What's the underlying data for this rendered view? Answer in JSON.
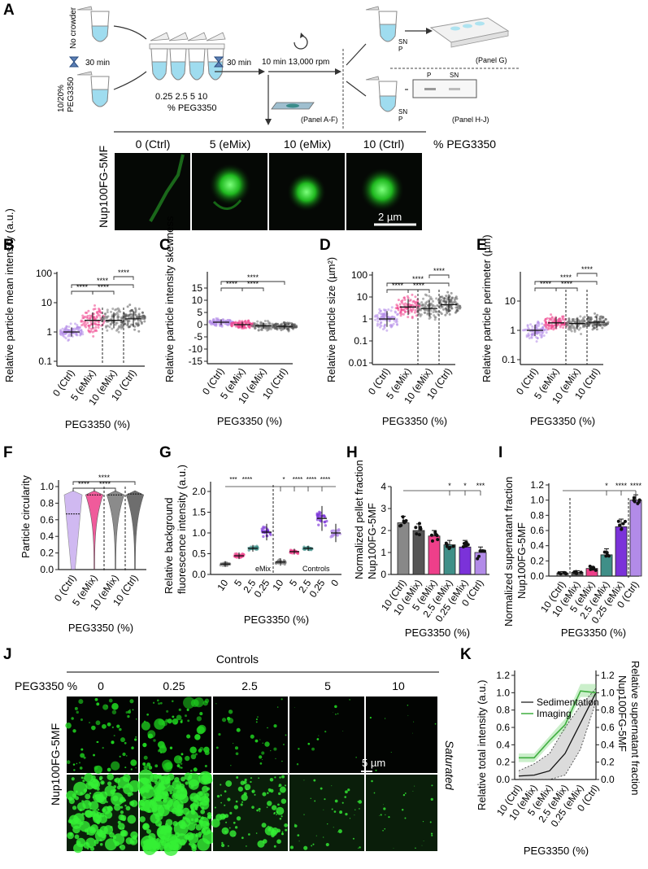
{
  "panels": {
    "A": "A",
    "B": "B",
    "C": "C",
    "D": "D",
    "E": "E",
    "F": "F",
    "G": "G",
    "H": "H",
    "I": "I",
    "J": "J",
    "K": "K"
  },
  "schematic": {
    "no_crowder": "No crowder",
    "peg_label_1": "10/20%",
    "peg_label_2": "PEG3350",
    "time_1": "30 min",
    "time_2": "30 min",
    "spin": "10 min 13,000 rpm",
    "conc_values": "0.25  2.5   5   10",
    "conc_unit": "% PEG3350",
    "sn": "SN",
    "p": "P",
    "panel_g_ref": "(Panel G)",
    "panel_hj_ref": "(Panel H-J)",
    "panel_af_ref": "(Panel A-F)",
    "gel_p": "P",
    "gel_sn": "SN"
  },
  "micrographs": {
    "headers": [
      "0 (Ctrl)",
      "5 (eMix)",
      "10 (eMix)",
      "10 (Ctrl)"
    ],
    "unit": "% PEG3350",
    "row_label": "Nup100FG-5MF",
    "scale": "2 µm"
  },
  "cats4": [
    "0 (Ctrl)",
    "5 (eMix)",
    "10 (eMix)",
    "10 (Ctrl)"
  ],
  "xlabel_peg": "PEG3350 (%)",
  "sig": "****",
  "B": {
    "ylabel": "Relative particle mean intensity (a.u.)",
    "ticks": [
      "100",
      "10",
      "1",
      "0.1"
    ]
  },
  "C": {
    "ylabel": "Relative particle intensity skewness",
    "ticks": [
      "15",
      "10",
      "5",
      "0",
      "-5",
      "-10",
      "-15"
    ]
  },
  "D": {
    "ylabel": "Relative particle size (µm²)",
    "ticks": [
      "100",
      "10",
      "1",
      "0.1",
      "0.01"
    ]
  },
  "E": {
    "ylabel": "Relative particle perimeter (µm)",
    "ticks": [
      "10",
      "1",
      "0.1"
    ]
  },
  "F": {
    "ylabel": "Particle circularity",
    "ticks": [
      "1.0",
      "0.8",
      "0.6",
      "0.4",
      "0.2",
      "0.0"
    ]
  },
  "G": {
    "ylabel_1": "Relative background",
    "ylabel_2": "fluorescence intensity (a.u.)",
    "ticks": [
      "2.0",
      "1.5",
      "1.0",
      "0.5",
      "0.0"
    ],
    "cats": [
      "10",
      "5",
      "2.5",
      "0.25",
      "10",
      "5",
      "2.5",
      "0.25",
      "0"
    ],
    "emix": "eMix",
    "controls": "Controls",
    "sig_labels": [
      "***",
      "****",
      "*",
      "****",
      "****",
      "****"
    ]
  },
  "H": {
    "ylabel_1": "Normalized pellet fraction",
    "ylabel_2": "Nup100FG-5MF",
    "ticks": [
      "4",
      "3",
      "2",
      "1",
      "0"
    ],
    "cats": [
      "10 (Ctrl)",
      "10 (eMix)",
      "5 (eMix)",
      "2.5 (eMix)",
      "0.25 (eMix)",
      "0 (Ctrl)"
    ],
    "sig_labels": [
      "*",
      "*",
      "***"
    ]
  },
  "I": {
    "ylabel_1": "Normalized supernatant fraction",
    "ylabel_2": "Nup100FG-5MF",
    "ticks": [
      "1.2",
      "1.0",
      "0.8",
      "0.6",
      "0.4",
      "0.2",
      "0.0"
    ],
    "cats": [
      "10 (Ctrl)",
      "10 (eMix)",
      "5 (eMix)",
      "2.5 (eMix)",
      "0.25 (eMix)",
      "0 (Ctrl)"
    ],
    "sig_labels": [
      "*",
      "****",
      "****"
    ]
  },
  "J": {
    "controls": "Controls",
    "peg_label": "PEG3350 %",
    "cols": [
      "0",
      "0.25",
      "2.5",
      "5",
      "10"
    ],
    "row_label": "Nup100FG-5MF",
    "scale": "5 µm",
    "saturated": "Saturated"
  },
  "K": {
    "ylabel_left": "Relative total intensity (a.u.)",
    "ylabel_right_1": "Relative supernatant fraction",
    "ylabel_right_2": "Nup100FG-5MF",
    "ticks": [
      "1.2",
      "1.0",
      "0.8",
      "0.6",
      "0.4",
      "0.2",
      "0.0"
    ],
    "cats": [
      "10 (Ctrl)",
      "10 (eMix)",
      "5 (eMix)",
      "2.5 (eMix)",
      "0.25 (eMix)",
      "0 (Ctrl)"
    ],
    "legend_sed": "Sedimentation",
    "legend_img": "Imaging",
    "color_sed": "#111111",
    "color_img": "#3fae3f"
  },
  "colors": {
    "ctrl0": "#b28be8",
    "emix5": "#ee3f8a",
    "emix10": "#777777",
    "ctrl10": "#555555",
    "teal": "#3f8f88",
    "purple": "#7b32d9",
    "green": "#22dd22"
  },
  "chart_data": [
    {
      "type": "scatter",
      "panel": "B",
      "categories": [
        "0 (Ctrl)",
        "5 (eMix)",
        "10 (eMix)",
        "10 (Ctrl)"
      ],
      "values": [
        1.0,
        2.5,
        2.5,
        2.8
      ],
      "ylabel": "Relative particle mean intensity (a.u.)",
      "xlabel": "PEG3350 (%)",
      "ylim": [
        0.1,
        100
      ],
      "log": true
    },
    {
      "type": "scatter",
      "panel": "C",
      "categories": [
        "0 (Ctrl)",
        "5 (eMix)",
        "10 (eMix)",
        "10 (Ctrl)"
      ],
      "values": [
        1.0,
        0.0,
        -0.5,
        -0.7
      ],
      "ylabel": "Relative particle intensity skewness",
      "xlabel": "PEG3350 (%)",
      "ylim": [
        -15,
        15
      ]
    },
    {
      "type": "scatter",
      "panel": "D",
      "categories": [
        "0 (Ctrl)",
        "5 (eMix)",
        "10 (eMix)",
        "10 (Ctrl)"
      ],
      "values": [
        1.0,
        3.5,
        3.0,
        4.5
      ],
      "ylabel": "Relative particle size (µm²)",
      "xlabel": "PEG3350 (%)",
      "ylim": [
        0.01,
        100
      ],
      "log": true
    },
    {
      "type": "scatter",
      "panel": "E",
      "categories": [
        "0 (Ctrl)",
        "5 (eMix)",
        "10 (eMix)",
        "10 (Ctrl)"
      ],
      "values": [
        1.0,
        1.8,
        1.7,
        1.9
      ],
      "ylabel": "Relative particle perimeter (µm)",
      "xlabel": "PEG3350 (%)",
      "ylim": [
        0.1,
        10
      ],
      "log": true
    },
    {
      "type": "area",
      "panel": "F",
      "categories": [
        "0 (Ctrl)",
        "5 (eMix)",
        "10 (eMix)",
        "10 (Ctrl)"
      ],
      "values": [
        0.67,
        0.9,
        0.9,
        0.91
      ],
      "ylabel": "Particle circularity",
      "xlabel": "PEG3350 (%)",
      "ylim": [
        0,
        1.0
      ]
    },
    {
      "type": "scatter",
      "panel": "G",
      "categories": [
        "10",
        "5",
        "2.5",
        "0.25",
        "10",
        "5",
        "2.5",
        "0.25",
        "0"
      ],
      "values": [
        0.25,
        0.45,
        0.63,
        1.02,
        0.3,
        0.55,
        0.63,
        1.35,
        1.0
      ],
      "ylabel": "Relative background fluorescence intensity (a.u.)",
      "xlabel": "PEG3350 (%)",
      "ylim": [
        0,
        2.0
      ]
    },
    {
      "type": "bar",
      "panel": "H",
      "categories": [
        "10 (Ctrl)",
        "10 (eMix)",
        "5 (eMix)",
        "2.5 (eMix)",
        "0.25 (eMix)",
        "0 (Ctrl)"
      ],
      "values": [
        2.35,
        2.0,
        1.75,
        1.35,
        1.25,
        1.0
      ],
      "errors": [
        0.3,
        0.3,
        0.25,
        0.2,
        0.3,
        0.25
      ],
      "ylabel": "Normalized pellet fraction Nup100FG-5MF",
      "xlabel": "PEG3350 (%)",
      "ylim": [
        0,
        4
      ]
    },
    {
      "type": "bar",
      "panel": "I",
      "categories": [
        "10 (Ctrl)",
        "10 (eMix)",
        "5 (eMix)",
        "2.5 (eMix)",
        "0.25 (eMix)",
        "0 (Ctrl)"
      ],
      "values": [
        0.04,
        0.05,
        0.1,
        0.28,
        0.65,
        1.0
      ],
      "errors": [
        0.02,
        0.02,
        0.03,
        0.08,
        0.1,
        0.07
      ],
      "ylabel": "Normalized supernatant fraction Nup100FG-5MF",
      "xlabel": "PEG3350 (%)",
      "ylim": [
        0,
        1.2
      ]
    },
    {
      "type": "line",
      "panel": "K",
      "categories": [
        "10 (Ctrl)",
        "10 (eMix)",
        "5 (eMix)",
        "2.5 (eMix)",
        "0.25 (eMix)",
        "0 (Ctrl)"
      ],
      "series": [
        {
          "name": "Sedimentation",
          "values": [
            0.04,
            0.05,
            0.1,
            0.3,
            0.65,
            1.0
          ]
        },
        {
          "name": "Imaging",
          "values": [
            0.25,
            0.25,
            0.45,
            0.63,
            1.02,
            1.0
          ]
        }
      ],
      "ylabel": "Relative total intensity (a.u.)",
      "xlabel": "PEG3350 (%)",
      "ylim": [
        0,
        1.2
      ]
    }
  ]
}
